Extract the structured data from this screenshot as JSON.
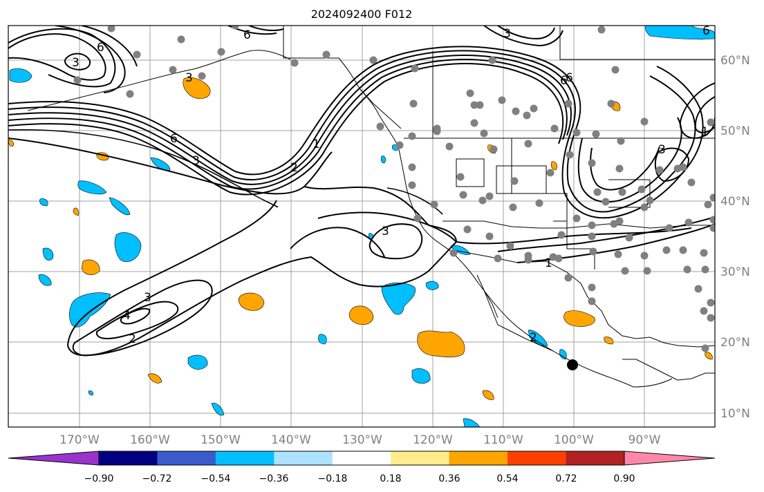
{
  "title": "2024092400 F012",
  "lat_labels": [
    "60°N",
    "50°N",
    "40°N",
    "30°N",
    "20°N",
    "10°N"
  ],
  "lon_labels": [
    "170°W",
    "160°W",
    "150°W",
    "140°W",
    "130°W",
    "120°W",
    "110°W",
    "100°W",
    "90°W"
  ],
  "colorbar": {
    "ticks": [
      "−0.90",
      "−0.72",
      "−0.54",
      "−0.36",
      "−0.18",
      "0.18",
      "0.36",
      "0.54",
      "0.72",
      "0.90"
    ],
    "colors": [
      "#9933cc",
      "#000080",
      "#3a5bcc",
      "#00bfff",
      "#ade2ff",
      "#ffffff",
      "#ffec8b",
      "#ffa500",
      "#ff4000",
      "#b22222",
      "#ff88aa"
    ]
  },
  "contour_labels": [
    "3",
    "6",
    "6",
    "3",
    "3",
    "6",
    "6",
    "3",
    "1",
    "2",
    "1",
    "6",
    "3",
    "3",
    "4",
    "3",
    "2",
    "1",
    "2",
    "6"
  ],
  "fill_colors": {
    "orange": "#ffa500",
    "cyan": "#00bfff"
  },
  "marker_color": "#808080"
}
